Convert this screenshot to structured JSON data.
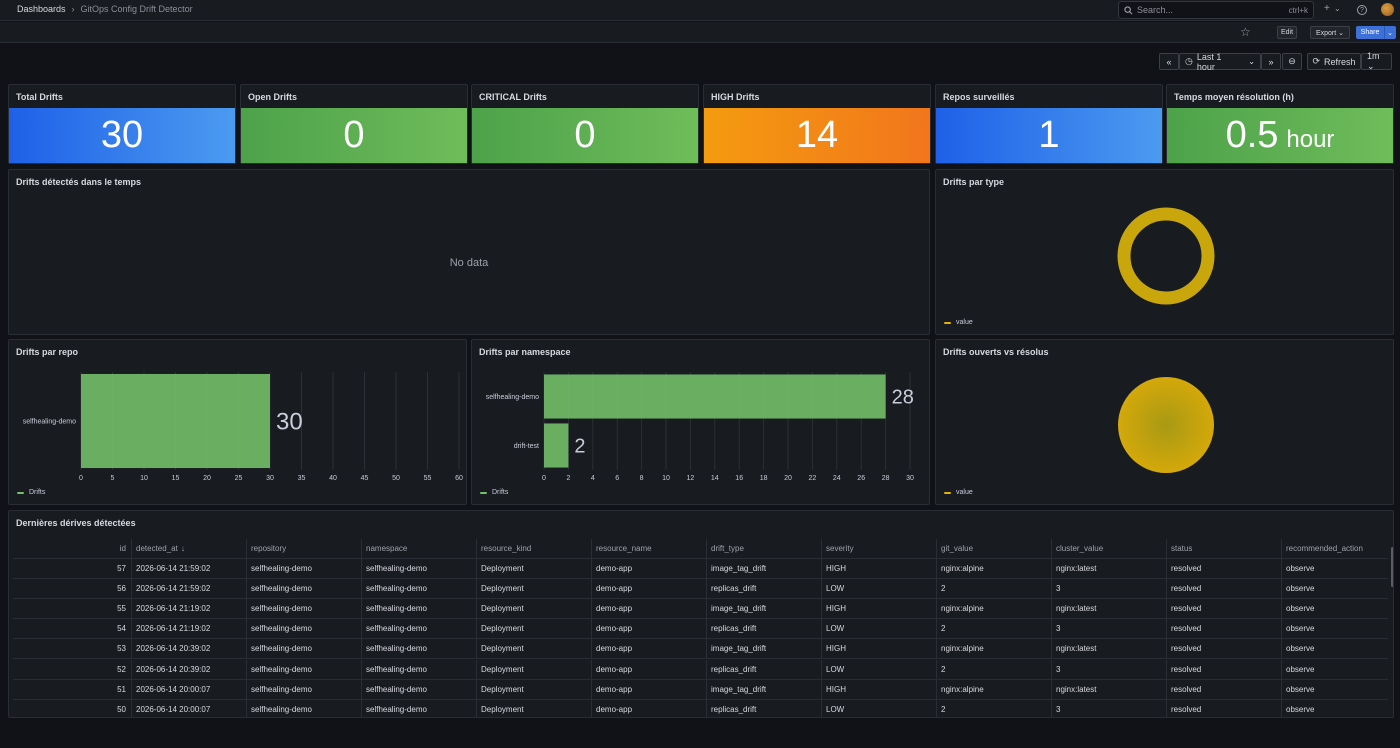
{
  "breadcrumb": {
    "root": "Dashboards",
    "separator": "›",
    "current": "GitOps Config Drift Detector"
  },
  "search": {
    "placeholder": "Search...",
    "shortcut": "ctrl+k"
  },
  "toolbar": {
    "plus": "+",
    "plus_caret": "⌄",
    "help": "?",
    "edit": "Edit",
    "export": "Export ⌄",
    "share": "Share",
    "share_caret": "⌄",
    "star": "☆"
  },
  "time_controls": {
    "back": "«",
    "range": "Last 1 hour",
    "range_caret": "⌄",
    "forward": "»",
    "zoom": "⊖",
    "refresh": "Refresh",
    "interval": "1m ⌄",
    "clock": "◷",
    "refresh_icon": "⟳"
  },
  "stats": [
    {
      "title": "Total Drifts",
      "value": "30",
      "unit": "",
      "color": "#3b7ded"
    },
    {
      "title": "Open Drifts",
      "value": "0",
      "unit": "",
      "color": "#5faf52"
    },
    {
      "title": "CRITICAL Drifts",
      "value": "0",
      "unit": "",
      "color": "#5faf52"
    },
    {
      "title": "HIGH Drifts",
      "value": "14",
      "unit": "",
      "color": "#f48a15"
    },
    {
      "title": "Repos surveillés",
      "value": "1",
      "unit": "",
      "color": "#3b7ded"
    },
    {
      "title": "Temps moyen résolution (h)",
      "value": "0.5",
      "unit": "hour",
      "color": "#5faf52"
    }
  ],
  "panels": {
    "timeseries": {
      "title": "Drifts détectés dans le temps",
      "no_data": "No data"
    },
    "by_type": {
      "title": "Drifts par type",
      "legend": "value",
      "color": "#c9a70c"
    },
    "by_repo": {
      "title": "Drifts par repo",
      "legend": "Drifts"
    },
    "by_namespace": {
      "title": "Drifts par namespace",
      "legend": "Drifts"
    },
    "open_vs_resolved": {
      "title": "Drifts ouverts vs résolus",
      "legend": "value",
      "color": "#c9a70c"
    },
    "table": {
      "title": "Dernières dérives détectées"
    }
  },
  "chart_data": [
    {
      "type": "bar",
      "orientation": "horizontal",
      "categories": [
        "selfhealing-demo"
      ],
      "series": [
        {
          "name": "Drifts",
          "values": [
            30
          ]
        }
      ],
      "xlim": [
        0,
        60
      ],
      "xticks": [
        0,
        5,
        10,
        15,
        20,
        25,
        30,
        35,
        40,
        45,
        50,
        55,
        60
      ],
      "color": "#73bf69"
    },
    {
      "type": "bar",
      "orientation": "horizontal",
      "categories": [
        "selfhealing-demo",
        "drift-test"
      ],
      "series": [
        {
          "name": "Drifts",
          "values": [
            28,
            2
          ]
        }
      ],
      "xlim": [
        0,
        30
      ],
      "xticks": [
        0,
        2,
        4,
        6,
        8,
        10,
        12,
        14,
        16,
        18,
        20,
        22,
        24,
        26,
        28,
        30
      ],
      "color": "#73bf69"
    }
  ],
  "table": {
    "columns": [
      "id",
      "detected_at",
      "repository",
      "namespace",
      "resource_kind",
      "resource_name",
      "drift_type",
      "severity",
      "git_value",
      "cluster_value",
      "status",
      "recommended_action"
    ],
    "sort_indicator": "↓",
    "rows": [
      [
        "57",
        "2026-06-14 21:59:02",
        "selfhealing-demo",
        "selfhealing-demo",
        "Deployment",
        "demo-app",
        "image_tag_drift",
        "HIGH",
        "nginx:alpine",
        "nginx:latest",
        "resolved",
        "observe"
      ],
      [
        "56",
        "2026-06-14 21:59:02",
        "selfhealing-demo",
        "selfhealing-demo",
        "Deployment",
        "demo-app",
        "replicas_drift",
        "LOW",
        "2",
        "3",
        "resolved",
        "observe"
      ],
      [
        "55",
        "2026-06-14 21:19:02",
        "selfhealing-demo",
        "selfhealing-demo",
        "Deployment",
        "demo-app",
        "image_tag_drift",
        "HIGH",
        "nginx:alpine",
        "nginx:latest",
        "resolved",
        "observe"
      ],
      [
        "54",
        "2026-06-14 21:19:02",
        "selfhealing-demo",
        "selfhealing-demo",
        "Deployment",
        "demo-app",
        "replicas_drift",
        "LOW",
        "2",
        "3",
        "resolved",
        "observe"
      ],
      [
        "53",
        "2026-06-14 20:39:02",
        "selfhealing-demo",
        "selfhealing-demo",
        "Deployment",
        "demo-app",
        "image_tag_drift",
        "HIGH",
        "nginx:alpine",
        "nginx:latest",
        "resolved",
        "observe"
      ],
      [
        "52",
        "2026-06-14 20:39:02",
        "selfhealing-demo",
        "selfhealing-demo",
        "Deployment",
        "demo-app",
        "replicas_drift",
        "LOW",
        "2",
        "3",
        "resolved",
        "observe"
      ],
      [
        "51",
        "2026-06-14 20:00:07",
        "selfhealing-demo",
        "selfhealing-demo",
        "Deployment",
        "demo-app",
        "image_tag_drift",
        "HIGH",
        "nginx:alpine",
        "nginx:latest",
        "resolved",
        "observe"
      ],
      [
        "50",
        "2026-06-14 20:00:07",
        "selfhealing-demo",
        "selfhealing-demo",
        "Deployment",
        "demo-app",
        "replicas_drift",
        "LOW",
        "2",
        "3",
        "resolved",
        "observe"
      ]
    ]
  }
}
